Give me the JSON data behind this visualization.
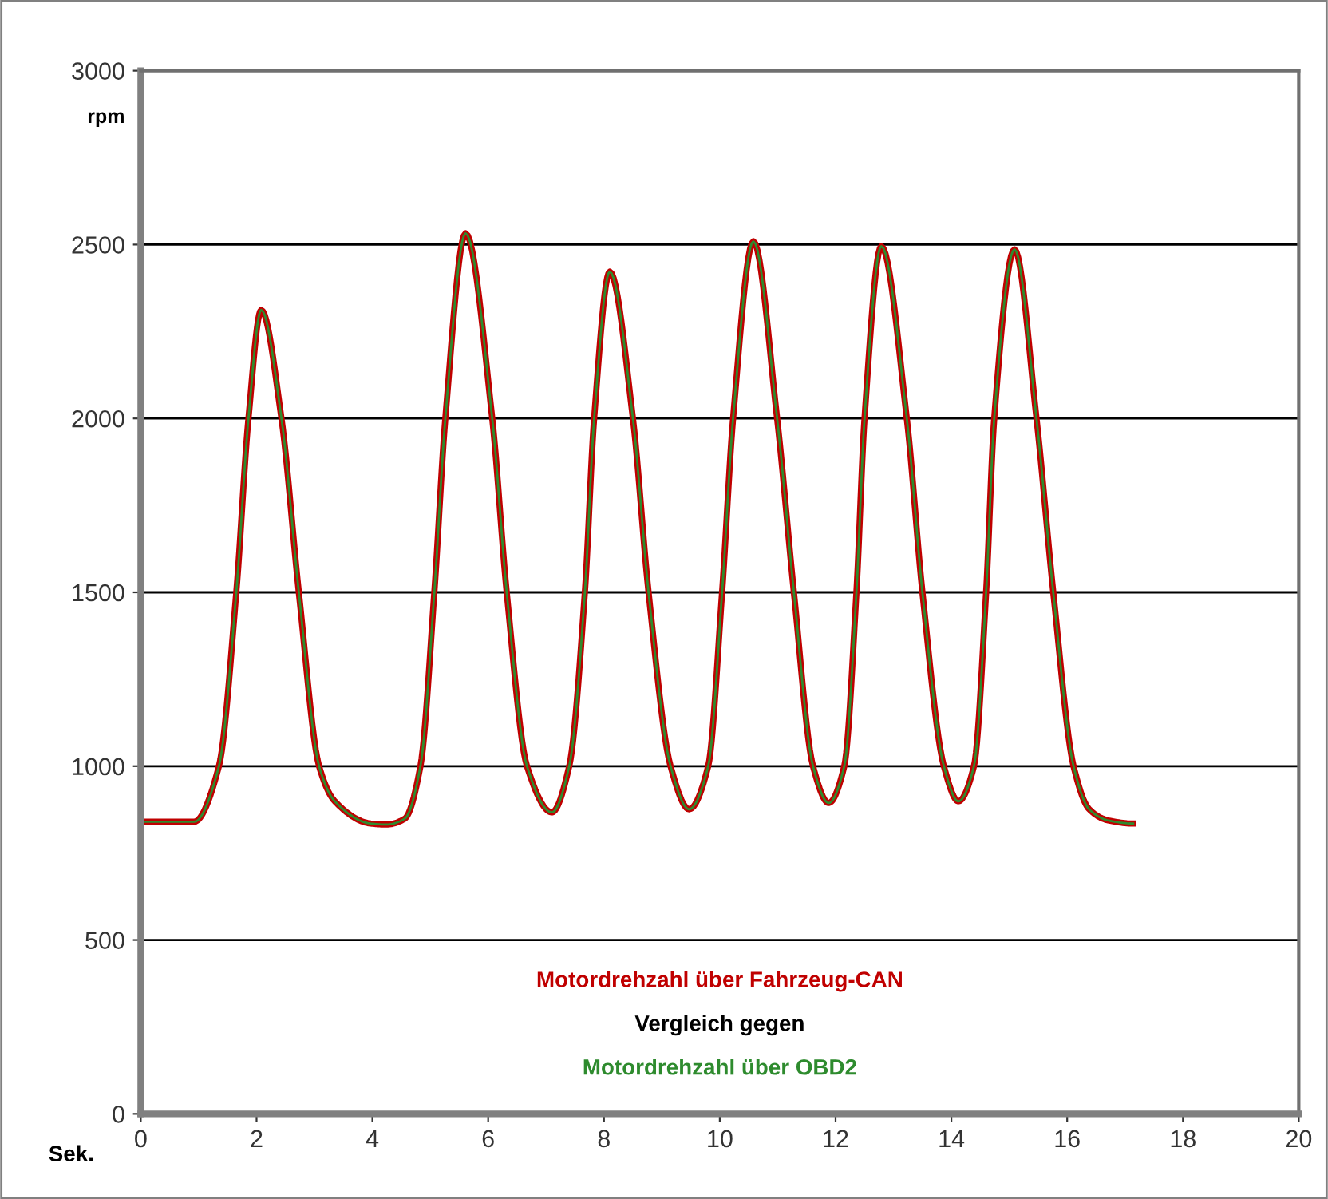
{
  "chart_data": {
    "type": "line",
    "xlabel": "Sek.",
    "ylabel": "rpm",
    "xlim": [
      0,
      20
    ],
    "xticks": [
      0,
      2,
      4,
      6,
      8,
      10,
      12,
      14,
      16,
      18,
      20
    ],
    "ylim": [
      0,
      3000
    ],
    "yticks": [
      0,
      500,
      1000,
      1500,
      2000,
      2500,
      3000
    ],
    "grid": "y",
    "legend": false,
    "marker": "none",
    "line_style": "solid",
    "x": [
      0,
      0.92,
      1.35,
      1.65,
      1.86,
      2.08,
      2.43,
      2.73,
      3.08,
      3.35,
      3.97,
      4.24,
      4.56,
      4.83,
      5.07,
      5.26,
      5.61,
      6.07,
      6.32,
      6.67,
      7.1,
      7.4,
      7.67,
      7.83,
      8.1,
      8.5,
      8.77,
      9.15,
      9.47,
      9.8,
      10.04,
      10.23,
      10.58,
      10.99,
      11.28,
      11.61,
      11.88,
      12.15,
      12.36,
      12.5,
      12.79,
      13.23,
      13.5,
      13.87,
      14.12,
      14.39,
      14.6,
      14.74,
      15.09,
      15.47,
      15.76,
      16.11,
      16.38,
      16.71,
      17.14
    ],
    "series": [
      {
        "name": "Motordrehzahl über Fahrzeug-CAN",
        "color": "#c00000",
        "values": [
          840,
          840,
          1000,
          1500,
          2000,
          2312,
          2000,
          1500,
          1000,
          899,
          835,
          832,
          849,
          1000,
          1500,
          2000,
          2532,
          2000,
          1500,
          1000,
          867,
          1000,
          1500,
          2000,
          2422,
          2000,
          1500,
          1000,
          876,
          1000,
          1500,
          2000,
          2509,
          2000,
          1500,
          1000,
          894,
          1000,
          1500,
          2000,
          2495,
          2000,
          1500,
          1000,
          899,
          1000,
          1500,
          2000,
          2486,
          2000,
          1500,
          1000,
          876,
          844,
          835
        ]
      },
      {
        "name": "Motordrehzahl über OBD2",
        "color": "#2e8b2e",
        "values": [
          840,
          840,
          1000,
          1500,
          2000,
          2312,
          2000,
          1500,
          1000,
          899,
          835,
          832,
          849,
          1000,
          1500,
          2000,
          2532,
          2000,
          1500,
          1000,
          867,
          1000,
          1500,
          2000,
          2422,
          2000,
          1500,
          1000,
          876,
          1000,
          1500,
          2000,
          2509,
          2000,
          1500,
          1000,
          894,
          1000,
          1500,
          2000,
          2495,
          2000,
          1500,
          1000,
          899,
          1000,
          1500,
          2000,
          2486,
          2000,
          1500,
          1000,
          876,
          844,
          835
        ]
      }
    ],
    "annotations": [
      "Vergleich gegen"
    ]
  }
}
